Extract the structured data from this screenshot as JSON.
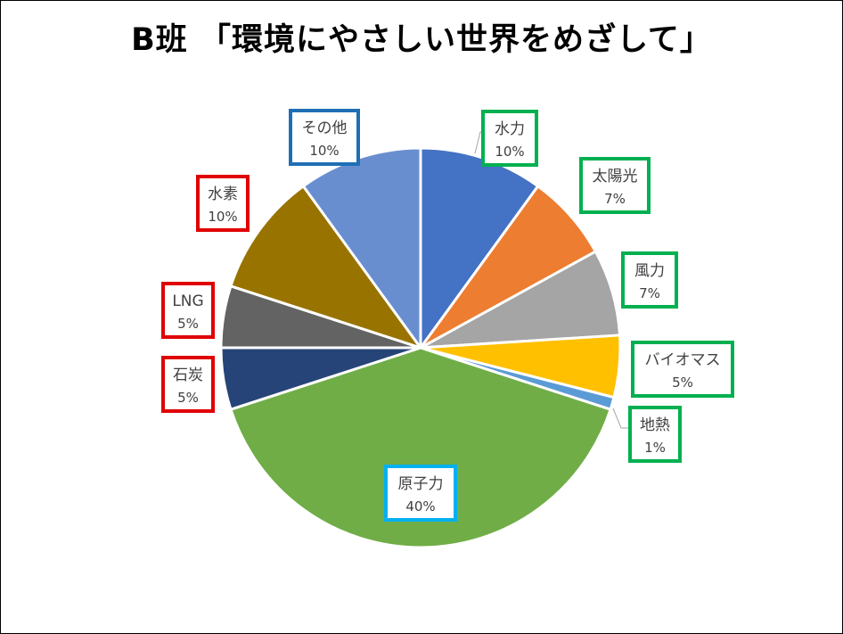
{
  "title": "B班 「環境にやさしい世界をめざして」",
  "chart_data": {
    "type": "pie",
    "title": "B班 「環境にやさしい世界をめざして」",
    "start_angle_deg": 0,
    "direction": "clockwise",
    "slices": [
      {
        "label": "水力",
        "value": 10,
        "value_label": "10%",
        "color": "#4472C4",
        "border": "#00B050"
      },
      {
        "label": "太陽光",
        "value": 7,
        "value_label": "7%",
        "color": "#ED7D31",
        "border": "#00B050"
      },
      {
        "label": "風力",
        "value": 7,
        "value_label": "7%",
        "color": "#A5A5A5",
        "border": "#00B050"
      },
      {
        "label": "バイオマス",
        "value": 5,
        "value_label": "5%",
        "color": "#FFC000",
        "border": "#00B050"
      },
      {
        "label": "地熱",
        "value": 1,
        "value_label": "1%",
        "color": "#5B9BD5",
        "border": "#00B050"
      },
      {
        "label": "原子力",
        "value": 40,
        "value_label": "40%",
        "color": "#70AD47",
        "border": "#00B0F0"
      },
      {
        "label": "石炭",
        "value": 5,
        "value_label": "5%",
        "color": "#264478",
        "border": "#E00000"
      },
      {
        "label": "LNG",
        "value": 5,
        "value_label": "5%",
        "color": "#636363",
        "border": "#E00000"
      },
      {
        "label": "水素",
        "value": 10,
        "value_label": "10%",
        "color": "#997300",
        "border": "#E00000"
      },
      {
        "label": "その他",
        "value": 10,
        "value_label": "10%",
        "color": "#698ED0",
        "border": "#1F6FB5"
      }
    ]
  }
}
